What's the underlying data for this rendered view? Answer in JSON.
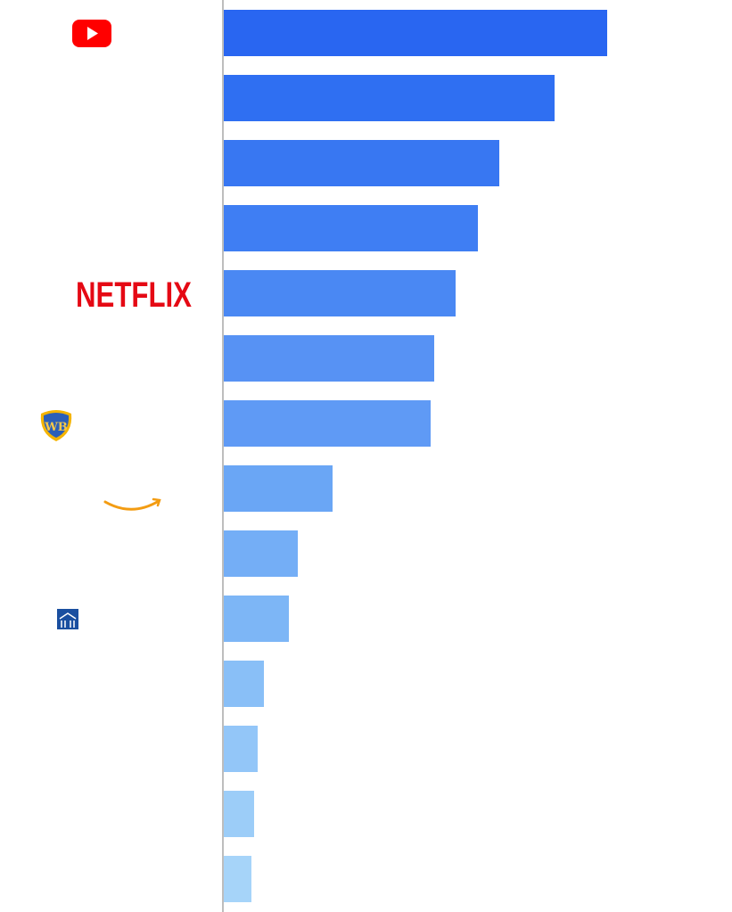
{
  "chart_data": {
    "type": "bar",
    "orientation": "horizontal",
    "categories": [
      null,
      null,
      null,
      null,
      "NETFLIX",
      null,
      null,
      null,
      null,
      null,
      null,
      null,
      null,
      null
    ],
    "values": [
      430,
      371,
      309,
      285,
      260,
      236,
      232,
      122,
      83,
      73,
      45,
      38,
      34,
      31
    ],
    "colors": [
      "#2966f1",
      "#2f6ff2",
      "#3877f2",
      "#3f7ef3",
      "#4a88f3",
      "#5792f4",
      "#5f9af5",
      "#6aa6f5",
      "#74aef6",
      "#7db6f6",
      "#89bff7",
      "#93c6f8",
      "#9ccdf8",
      "#a6d4f9"
    ]
  }
}
